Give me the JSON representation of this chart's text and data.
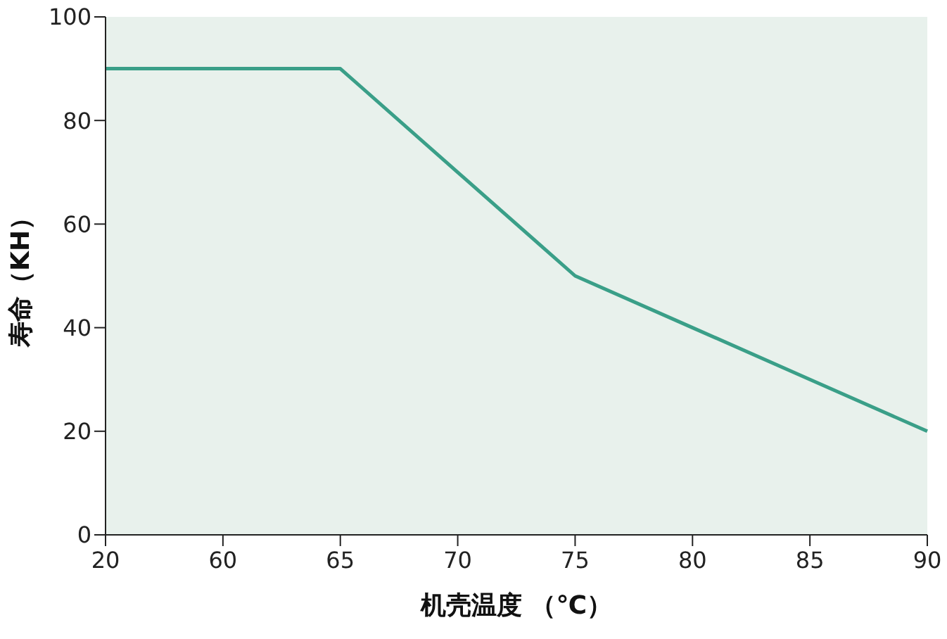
{
  "chart_data": {
    "type": "line",
    "xlabel": "机壳温度 （℃）",
    "ylabel": "寿命（KH）",
    "categories": [
      "20",
      "60",
      "65",
      "70",
      "75",
      "80",
      "85",
      "90"
    ],
    "series": [
      {
        "color": "#3a9f88",
        "values": [
          90,
          90,
          90,
          70,
          50,
          40,
          30,
          20
        ]
      }
    ],
    "ylim": [
      0,
      100
    ],
    "yticks": [
      0,
      20,
      40,
      60,
      80,
      100
    ],
    "grid": false,
    "marker": "none",
    "line_style": "solid"
  }
}
